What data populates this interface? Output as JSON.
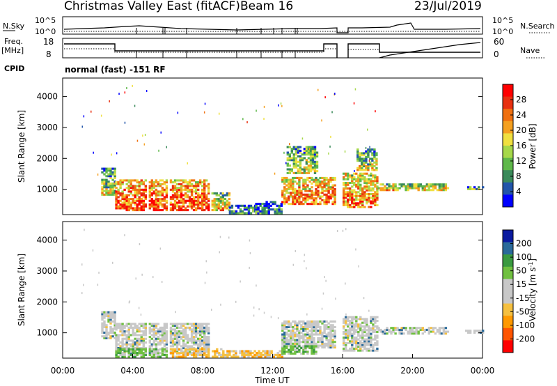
{
  "header": {
    "title": "Christmas Valley East (fitACF)",
    "beam": "Beam 16",
    "date": "23/Jul/2019"
  },
  "panels": {
    "nsky_label": "N.Sky",
    "nsky_ticks": [
      "10^5",
      "10^0"
    ],
    "nsearch_ticks": [
      "10^5",
      "10^0"
    ],
    "nsearch_label": "N.Search",
    "freq_label_top": "Freq.",
    "freq_label_unit": "[MHz]",
    "freq_ticks": [
      "18",
      "8"
    ],
    "nave_ticks": [
      "60",
      "0"
    ],
    "nave_label": "Nave",
    "cpid_label": "CPID",
    "cpid_text": "normal (fast) -151 RF"
  },
  "colors": {
    "power_scale": [
      "#0000ff",
      "#2255aa",
      "#3a8a5a",
      "#5fb84a",
      "#a6d84a",
      "#f0e040",
      "#f5a020",
      "#f07010",
      "#e83010",
      "#ff0000"
    ],
    "velocity_scale": [
      "#ff0000",
      "#ff5500",
      "#ff9900",
      "#f5c040",
      "#c8c8c8",
      "#c8c8c8",
      "#70c040",
      "#3a9a40",
      "#2a6a9a",
      "#0a1aa0"
    ]
  },
  "chart_data": [
    {
      "type": "heatmap",
      "name": "power",
      "xlabel": "",
      "ylabel": "Slant Range [km]",
      "xlim": [
        0,
        24
      ],
      "ylim": [
        180,
        4600
      ],
      "yticks": [
        "4000",
        "3000",
        "2000",
        "1000"
      ],
      "ytick_values": [
        4000,
        3000,
        2000,
        1000
      ],
      "colorbar_label": "Power [dB]",
      "colorbar_ticks": [
        "28",
        "24",
        "20",
        "16",
        "12",
        "8",
        "4"
      ],
      "colorbar_range": [
        0,
        32
      ],
      "regions": [
        {
          "t": [
            2.2,
            3.0
          ],
          "r": [
            800,
            1700
          ],
          "level": 0.5
        },
        {
          "t": [
            3.0,
            8.5
          ],
          "r": [
            300,
            1300
          ],
          "level": 0.85
        },
        {
          "t": [
            8.5,
            9.5
          ],
          "r": [
            300,
            900
          ],
          "level": 0.6
        },
        {
          "t": [
            9.5,
            11.0
          ],
          "r": [
            200,
            500
          ],
          "level": 0.3
        },
        {
          "t": [
            11.0,
            12.5
          ],
          "r": [
            200,
            600
          ],
          "level": 0.3
        },
        {
          "t": [
            12.5,
            15.5
          ],
          "r": [
            500,
            1400
          ],
          "level": 0.75
        },
        {
          "t": [
            12.8,
            14.5
          ],
          "r": [
            1500,
            2400
          ],
          "level": 0.5
        },
        {
          "t": [
            16.0,
            18.0
          ],
          "r": [
            400,
            1500
          ],
          "level": 0.75
        },
        {
          "t": [
            16.8,
            18.0
          ],
          "r": [
            1600,
            2300
          ],
          "level": 0.5
        },
        {
          "t": [
            18.0,
            22.0
          ],
          "r": [
            950,
            1150
          ],
          "level": 0.6
        },
        {
          "t": [
            23.0,
            24.0
          ],
          "r": [
            980,
            1050
          ],
          "level": 0.4
        }
      ]
    },
    {
      "type": "heatmap",
      "name": "velocity",
      "xlabel": "Time UT",
      "ylabel": "Slant Range [km]",
      "xlim": [
        0,
        24
      ],
      "ylim": [
        180,
        4600
      ],
      "xticks": [
        "00:00",
        "04:00",
        "08:00",
        "12:00",
        "16:00",
        "20:00",
        "00:00"
      ],
      "xtick_values": [
        0,
        4,
        8,
        12,
        16,
        20,
        24
      ],
      "yticks": [
        "4000",
        "3000",
        "2000",
        "1000"
      ],
      "ytick_values": [
        4000,
        3000,
        2000,
        1000
      ],
      "colorbar_label": "Velocity [m s^-1]",
      "colorbar_ticks": [
        "200",
        "100",
        "50",
        "15",
        "-15",
        "-50",
        "-100",
        "-200"
      ],
      "regions": [
        {
          "t": [
            2.2,
            3.0
          ],
          "r": [
            800,
            1700
          ],
          "level": 0.5
        },
        {
          "t": [
            3.0,
            8.5
          ],
          "r": [
            300,
            1300
          ],
          "level": 0.5
        },
        {
          "t": [
            3.0,
            6.0
          ],
          "r": [
            200,
            500
          ],
          "level": 0.7
        },
        {
          "t": [
            6.0,
            9.0
          ],
          "r": [
            200,
            450
          ],
          "level": 0.3
        },
        {
          "t": [
            9.0,
            12.5
          ],
          "r": [
            200,
            400
          ],
          "level": 0.3
        },
        {
          "t": [
            12.5,
            15.5
          ],
          "r": [
            500,
            1400
          ],
          "level": 0.5
        },
        {
          "t": [
            12.5,
            14.5
          ],
          "r": [
            300,
            600
          ],
          "level": 0.7
        },
        {
          "t": [
            16.0,
            18.0
          ],
          "r": [
            400,
            1500
          ],
          "level": 0.5
        },
        {
          "t": [
            18.0,
            22.0
          ],
          "r": [
            950,
            1150
          ],
          "level": 0.5
        },
        {
          "t": [
            23.0,
            24.0
          ],
          "r": [
            980,
            1050
          ],
          "level": 0.5
        }
      ]
    }
  ]
}
